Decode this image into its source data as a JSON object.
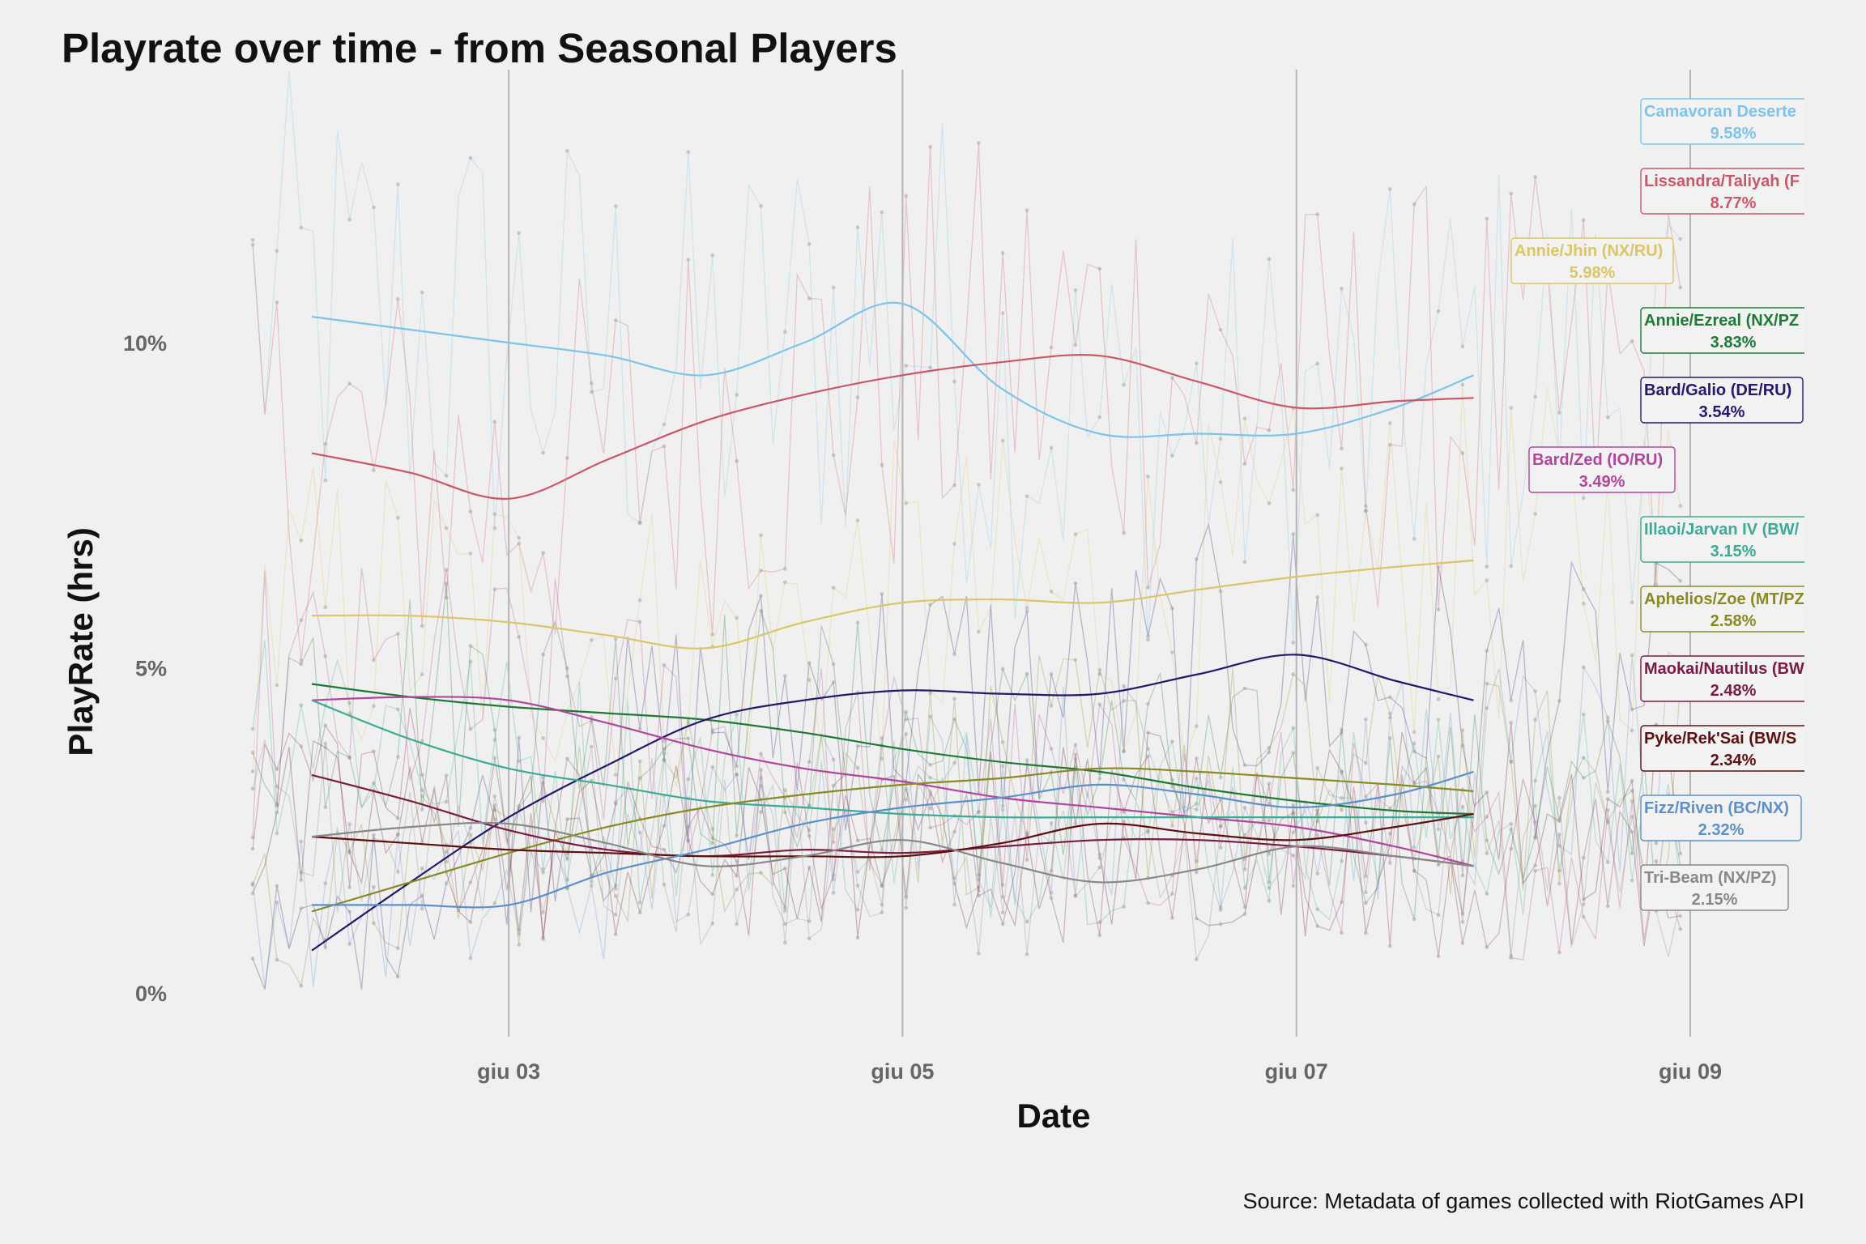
{
  "title": "Playrate over time - from Seasonal Players",
  "source": "Source: Metadata of games collected with RiotGames API",
  "chart_data": {
    "type": "line",
    "title": "Playrate over time - from Seasonal Players",
    "xlabel": "Date",
    "ylabel": "PlayRate (hrs)",
    "x_ticks": [
      "giu 03",
      "giu 05",
      "giu 07",
      "giu 09"
    ],
    "x_tick_values": [
      3,
      5,
      7,
      9
    ],
    "y_ticks": [
      "0%",
      "5%",
      "10%"
    ],
    "y_tick_values": [
      0,
      5,
      10
    ],
    "xlim": [
      1.56,
      9.58
    ],
    "ylim": [
      -0.8,
      14.2
    ],
    "grid": "vertical lines at x ticks",
    "x": [
      2.0,
      2.5,
      3.0,
      3.5,
      4.0,
      4.5,
      5.0,
      5.5,
      6.0,
      6.5,
      7.0,
      7.5,
      7.9
    ],
    "series": [
      {
        "name": "Camavoran Deserte",
        "label_pct": "9.58%",
        "color": "#7cc4ea",
        "values": [
          10.4,
          10.2,
          10.0,
          9.8,
          9.5,
          10.0,
          10.6,
          9.3,
          8.6,
          8.6,
          8.6,
          9.0,
          9.5
        ]
      },
      {
        "name": "Lissandra/Taliyah (F",
        "label_pct": "8.77%",
        "color": "#cc5667",
        "values": [
          8.3,
          8.0,
          7.6,
          8.2,
          8.8,
          9.2,
          9.5,
          9.7,
          9.8,
          9.4,
          9.0,
          9.1,
          9.15
        ]
      },
      {
        "name": "Annie/Jhin (NX/RU)",
        "label_pct": "5.98%",
        "color": "#dcc565",
        "values": [
          5.8,
          5.8,
          5.7,
          5.5,
          5.3,
          5.7,
          6.0,
          6.05,
          6.0,
          6.2,
          6.4,
          6.55,
          6.65
        ]
      },
      {
        "name": "Annie/Ezreal (NX/PZ",
        "label_pct": "3.83%",
        "color": "#1c7a36",
        "values": [
          4.75,
          4.55,
          4.4,
          4.3,
          4.2,
          4.0,
          3.75,
          3.55,
          3.4,
          3.15,
          2.95,
          2.8,
          2.75
        ]
      },
      {
        "name": "Bard/Galio (DE/RU)",
        "label_pct": "3.54%",
        "color": "#25186d",
        "values": [
          0.65,
          1.7,
          2.7,
          3.5,
          4.2,
          4.5,
          4.65,
          4.6,
          4.6,
          4.9,
          5.2,
          4.8,
          4.5
        ]
      },
      {
        "name": "Bard/Zed (IO/RU)",
        "label_pct": "3.49%",
        "color": "#b3449e",
        "values": [
          4.5,
          4.55,
          4.5,
          4.15,
          3.75,
          3.45,
          3.25,
          3.0,
          2.85,
          2.7,
          2.55,
          2.25,
          1.95
        ]
      },
      {
        "name": "Illaoi/Jarvan IV (BW/",
        "label_pct": "3.15%",
        "color": "#3aab95",
        "values": [
          4.5,
          3.9,
          3.45,
          3.2,
          2.95,
          2.85,
          2.75,
          2.7,
          2.7,
          2.7,
          2.7,
          2.7,
          2.7
        ]
      },
      {
        "name": "Aphelios/Zoe (MT/PZ",
        "label_pct": "2.58%",
        "color": "#8a8a22",
        "values": [
          1.25,
          1.7,
          2.15,
          2.55,
          2.85,
          3.05,
          3.2,
          3.3,
          3.45,
          3.4,
          3.3,
          3.2,
          3.1
        ]
      },
      {
        "name": "Maokai/Nautilus (BW",
        "label_pct": "2.48%",
        "color": "#7a1a45",
        "values": [
          3.35,
          2.95,
          2.5,
          2.2,
          2.1,
          2.2,
          2.15,
          2.25,
          2.35,
          2.35,
          2.25,
          2.1,
          1.95
        ]
      },
      {
        "name": "Pyke/Rek'Sai (BW/S",
        "label_pct": "2.34%",
        "color": "#5e0f0f",
        "values": [
          2.4,
          2.3,
          2.2,
          2.15,
          2.1,
          2.1,
          2.1,
          2.3,
          2.6,
          2.45,
          2.35,
          2.55,
          2.75
        ]
      },
      {
        "name": "Fizz/Riven (BC/NX)",
        "label_pct": "2.32%",
        "color": "#5d8fcb",
        "values": [
          1.35,
          1.35,
          1.35,
          1.85,
          2.2,
          2.6,
          2.85,
          3.0,
          3.2,
          3.05,
          2.85,
          3.05,
          3.4
        ]
      },
      {
        "name": "Tri-Beam (NX/PZ)",
        "label_pct": "2.15%",
        "color": "#888888",
        "values": [
          2.4,
          2.55,
          2.6,
          2.3,
          1.95,
          2.1,
          2.35,
          2.0,
          1.7,
          1.9,
          2.25,
          2.1,
          1.95
        ]
      }
    ]
  }
}
